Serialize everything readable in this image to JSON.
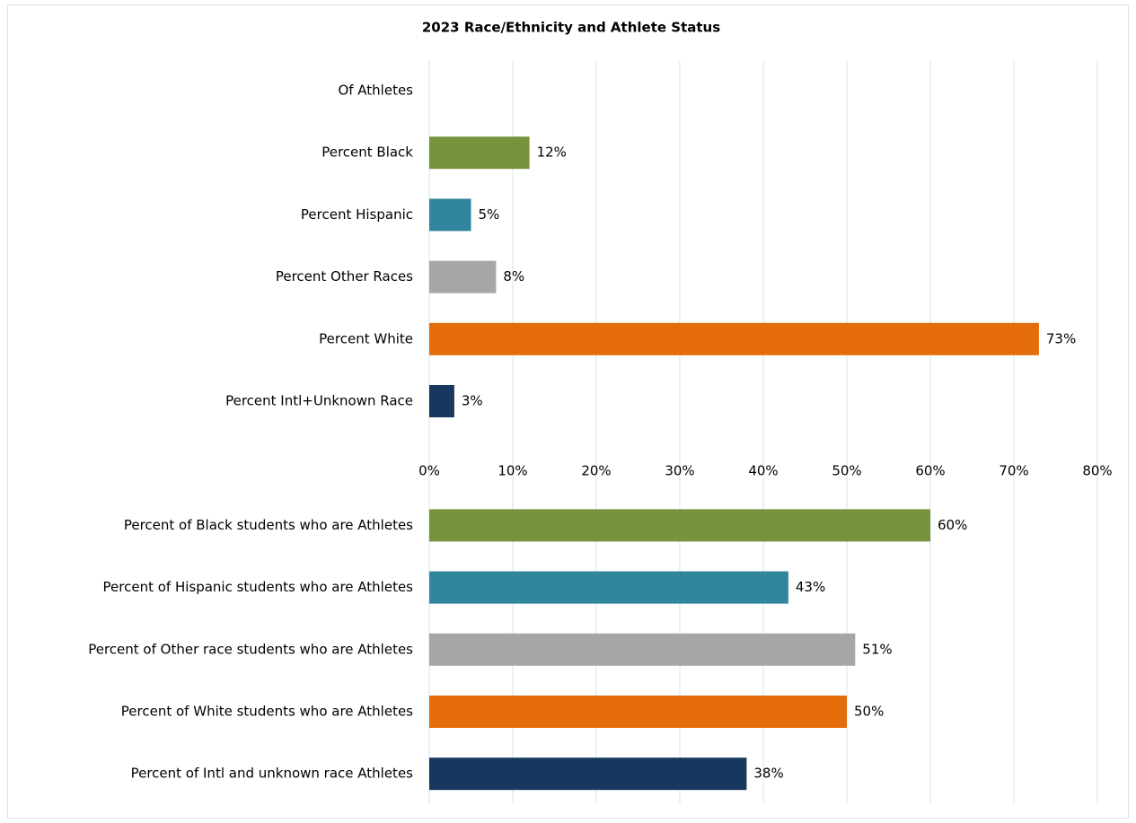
{
  "chart_data": {
    "type": "bar",
    "orientation": "horizontal",
    "title": "2023 Race/Ethnicity and Athlete Status",
    "categories": [
      "Of Athletes",
      "Percent Black",
      "Percent Hispanic",
      "Percent Other Races",
      "Percent White",
      "Percent Intl+Unknown Race",
      "Percent of Black students who are Athletes",
      "Percent of Hispanic students who are Athletes",
      "Percent of Other race students who are Athletes",
      "Percent of White students who are Athletes",
      "Percent of Intl and unknown race Athletes"
    ],
    "values": [
      null,
      12,
      5,
      8,
      73,
      3,
      60,
      43,
      51,
      50,
      38
    ],
    "value_labels": [
      null,
      "12%",
      "5%",
      "8%",
      "73%",
      "3%",
      "60%",
      "43%",
      "51%",
      "50%",
      "38%"
    ],
    "colors": [
      null,
      "#77933c",
      "#31859c",
      "#a6a6a6",
      "#e46c0a",
      "#17375e",
      "#77933c",
      "#31859c",
      "#a6a6a6",
      "#e46c0a",
      "#17375e"
    ],
    "xlim": [
      0,
      80
    ],
    "xticks": [
      {
        "value": 0,
        "label": "0%"
      },
      {
        "value": 10,
        "label": "10%"
      },
      {
        "value": 20,
        "label": "20%"
      },
      {
        "value": 30,
        "label": "30%"
      },
      {
        "value": 40,
        "label": "40%"
      },
      {
        "value": 50,
        "label": "50%"
      },
      {
        "value": 60,
        "label": "60%"
      },
      {
        "value": 70,
        "label": "70%"
      },
      {
        "value": 80,
        "label": "80%"
      }
    ],
    "grid": true
  }
}
